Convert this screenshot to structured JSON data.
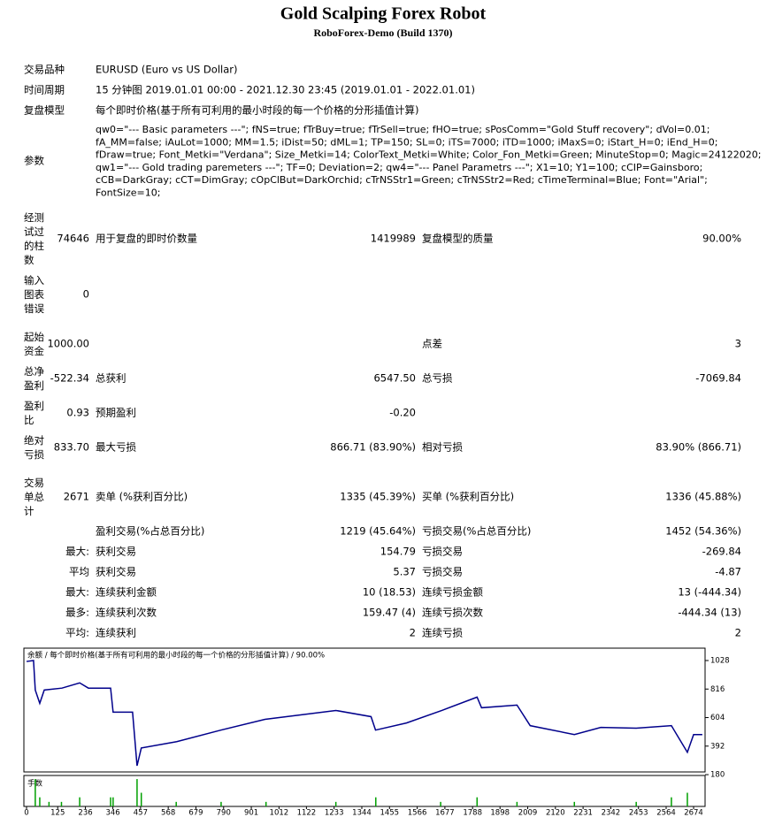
{
  "header": {
    "title": "Gold Scalping Forex Robot",
    "subtitle": "RoboForex-Demo (Build 1370)"
  },
  "info": [
    {
      "label": "交易品种",
      "value": "EURUSD (Euro vs US Dollar)"
    },
    {
      "label": "时间周期",
      "value": "15 分钟图 2019.01.01 00:00 - 2021.12.30 23:45 (2019.01.01 - 2022.01.01)"
    },
    {
      "label": "复盘模型",
      "value": "每个即时价格(基于所有可利用的最小时段的每一个价格的分形插值计算)"
    }
  ],
  "parameters": {
    "label": "参数",
    "lines": [
      "qw0=\"--- Basic parameters ---\"; fNS=true; fTrBuy=true; fTrSell=true; fHO=true; sPosComm=\"Gold Stuff recovery\"; dVol=0.01;",
      "fA_MM=false; iAuLot=1000; MM=1.5; iDist=50; dML=1; TP=150; SL=0; iTS=7000; iTD=1000; iMaxS=0; iStart_H=0; iEnd_H=0;",
      "fDraw=true; Font_Metki=\"Verdana\"; Size_Metki=14; ColorText_Metki=White; Color_Fon_Metki=Green; MinuteStop=0; Magic=24122020;",
      "qw1=\"--- Gold trading paremeters ---\"; TF=0; Deviation=2; qw4=\"--- Panel Parametrs ---\"; X1=10; Y1=100; cCIP=Gainsboro;",
      "cCB=DarkGray; cCT=DimGray; cOpClBut=DarkOrchid; cTrNSStr1=Green; cTrNSStr2=Red; cTimeTerminal=Blue; Font=\"Arial\";",
      "FontSize=10;"
    ]
  },
  "stats": [
    {
      "name": "经测试过的柱数",
      "value": "74646",
      "name2": "用于复盘的即时价数量",
      "value2": "1419989",
      "name3": "复盘模型的质量",
      "value3": "90.00%"
    },
    {
      "name": "输入图表错误",
      "value": "0"
    },
    {
      "name": "起始资金",
      "value": "1000.00",
      "name3": "点差",
      "value3": "3"
    },
    {
      "name": "总净盈利",
      "value": "-522.34",
      "name2": "总获利",
      "value2": "6547.50",
      "name3": "总亏损",
      "value3": "-7069.84"
    },
    {
      "name": "盈利比",
      "value": "0.93",
      "name2": "预期盈利",
      "value2": "-0.20"
    },
    {
      "name": "绝对亏损",
      "value": "833.70",
      "name2": "最大亏损",
      "value2": "866.71 (83.90%)",
      "name3": "相对亏损",
      "value3": "83.90% (866.71)"
    },
    {
      "name": "交易单总计",
      "value": "2671",
      "name2": "卖单 (%获利百分比)",
      "value2": "1335 (45.39%)",
      "name3": "买单 (%获利百分比)",
      "value3": "1336 (45.88%)"
    },
    {
      "name2": "盈利交易(%占总百分比)",
      "value2": "1219 (45.64%)",
      "name3": "亏损交易(%占总百分比)",
      "value3": "1452 (54.36%)"
    },
    {
      "name": "最大:",
      "name2": "获利交易",
      "value2": "154.79",
      "name3": "亏损交易",
      "value3": "-269.84"
    },
    {
      "name": "平均",
      "name2": "获利交易",
      "value2": "5.37",
      "name3": "亏损交易",
      "value3": "-4.87"
    },
    {
      "name": "最大:",
      "name2": "连续获利金额",
      "value2": "10 (18.53)",
      "name3": "连续亏损金额",
      "value3": "13 (-444.34)"
    },
    {
      "name": "最多:",
      "name2": "连续获利次数",
      "value2": "159.47 (4)",
      "name3": "连续亏损次数",
      "value3": "-444.34 (13)"
    },
    {
      "name": "平均:",
      "name2": "连续获利",
      "value2": "2",
      "name3": "连续亏损",
      "value3": "2"
    }
  ],
  "chart_data": {
    "type": "line",
    "title": "余额 / 每个即时价格(基于所有可利用的最小时段的每一个价格的分形插值计算) / 90.00%",
    "x": [
      0,
      28,
      35,
      53,
      71,
      142,
      213,
      248,
      337,
      347,
      425,
      443,
      460,
      602,
      779,
      956,
      1098,
      1240,
      1381,
      1399,
      1523,
      1665,
      1806,
      1824,
      1966,
      2019,
      2196,
      2302,
      2444,
      2585,
      2649,
      2674,
      2709
    ],
    "series": [
      {
        "name": "余额",
        "color": "#00008b",
        "values": [
          1021,
          1028,
          809,
          710,
          809,
          823,
          862,
          823,
          823,
          644,
          644,
          246,
          378,
          425,
          511,
          591,
          624,
          657,
          611,
          511,
          564,
          657,
          756,
          677,
          697,
          544,
          478,
          531,
          525,
          544,
          346,
          478,
          478
        ]
      }
    ],
    "xlim": [
      0,
      2720
    ],
    "ylim": [
      200,
      1120
    ],
    "xticks": [
      0,
      125,
      236,
      346,
      457,
      568,
      679,
      790,
      901,
      1012,
      1122,
      1233,
      1344,
      1455,
      1566,
      1677,
      1788,
      1898,
      2009,
      2120,
      2231,
      2342,
      2453,
      2564,
      2674
    ],
    "yticks": [
      1028,
      816,
      604,
      392,
      180
    ],
    "lots": {
      "label": "手数",
      "color": "#00a000",
      "x": [
        35,
        53,
        90,
        140,
        213,
        337,
        347,
        443,
        460,
        600,
        780,
        960,
        1240,
        1400,
        1660,
        1806,
        1966,
        2196,
        2444,
        2585,
        2649
      ],
      "values": [
        0.3,
        0.1,
        0.05,
        0.05,
        0.1,
        0.1,
        0.1,
        0.3,
        0.15,
        0.05,
        0.05,
        0.05,
        0.05,
        0.1,
        0.05,
        0.1,
        0.05,
        0.05,
        0.05,
        0.1,
        0.15
      ],
      "ylim": [
        0,
        0.32
      ]
    }
  }
}
